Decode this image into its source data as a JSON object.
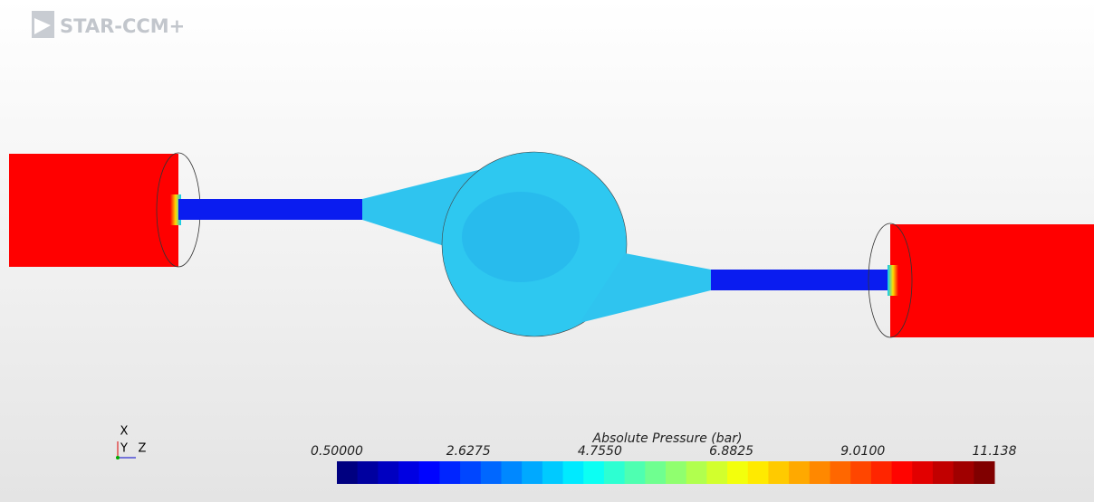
{
  "app": {
    "logo": "STAR-CCM+"
  },
  "triad": {
    "x": "X",
    "y": "Y",
    "z": "Z"
  },
  "colorbar": {
    "title": "Absolute Pressure (bar)",
    "range": [
      0.5,
      11.138
    ],
    "ticks": [
      {
        "value": 0.5,
        "label": "0.50000"
      },
      2.6275,
      {
        "value": 4.755,
        "label": "4.7550"
      },
      6.8825,
      {
        "value": 9.01,
        "label": "9.0100"
      },
      11.138
    ],
    "bands": 32
  }
}
